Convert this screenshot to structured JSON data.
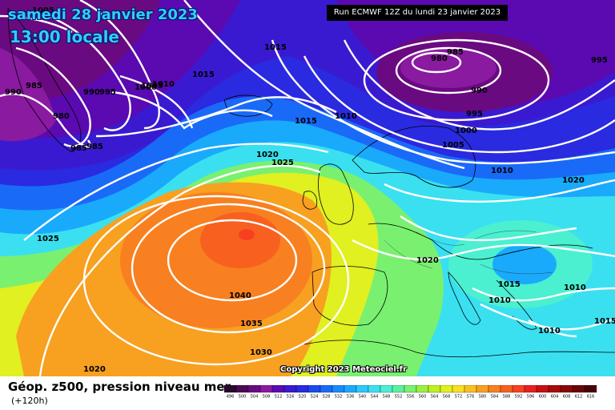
{
  "header": {
    "date_line": "samedi 28 janvier 2023",
    "time_line": "13:00 locale",
    "run_info": "Run ECMWF 12Z du lundi 23 janvier 2023"
  },
  "footer": {
    "title": "Géop. z500, pression niveau mer",
    "subtitle": "(+120h)",
    "copyright": "Copyright 2023 Meteociel.fr"
  },
  "legend": {
    "values": [
      "496",
      "500",
      "504",
      "508",
      "512",
      "516",
      "520",
      "524",
      "528",
      "532",
      "536",
      "540",
      "544",
      "548",
      "552",
      "556",
      "560",
      "564",
      "568",
      "572",
      "576",
      "580",
      "584",
      "588",
      "592",
      "596",
      "600",
      "604",
      "608",
      "612",
      "616"
    ],
    "colors": [
      "#2a0a2e",
      "#4a0a55",
      "#6a0a80",
      "#8a1aa0",
      "#5a0ab0",
      "#3a1ad0",
      "#2a2ae0",
      "#1a4af0",
      "#1a6af8",
      "#1a8afa",
      "#1aaafc",
      "#2acafc",
      "#3ae0f0",
      "#4af0d0",
      "#5af0a0",
      "#7af070",
      "#9af040",
      "#c0f020",
      "#e0f020",
      "#f8e020",
      "#f8c020",
      "#f8a020",
      "#f88020",
      "#f86020",
      "#f84020",
      "#e82020",
      "#c81010",
      "#a80a0a",
      "#880808",
      "#680606",
      "#480404"
    ]
  },
  "map_labels": [
    {
      "text": "1005"
    },
    {
      "text": "985"
    },
    {
      "text": "990"
    },
    {
      "text": "985"
    },
    {
      "text": "990"
    },
    {
      "text": "995"
    },
    {
      "text": "1000"
    },
    {
      "text": "1005"
    },
    {
      "text": "1010"
    },
    {
      "text": "1015"
    },
    {
      "text": "1015"
    },
    {
      "text": "980"
    },
    {
      "text": "985"
    },
    {
      "text": "1015"
    },
    {
      "text": "1010"
    },
    {
      "text": "985"
    },
    {
      "text": "980"
    },
    {
      "text": "990"
    },
    {
      "text": "995"
    },
    {
      "text": "1000"
    },
    {
      "text": "1005"
    },
    {
      "text": "995"
    },
    {
      "text": "1010"
    },
    {
      "text": "1020"
    },
    {
      "text": "1025"
    },
    {
      "text": "1020"
    },
    {
      "text": "1025"
    },
    {
      "text": "1020"
    },
    {
      "text": "1040"
    },
    {
      "text": "1035"
    },
    {
      "text": "1030"
    },
    {
      "text": "1020"
    },
    {
      "text": "1015"
    },
    {
      "text": "1010"
    },
    {
      "text": "1010"
    },
    {
      "text": "1010"
    },
    {
      "text": "1015"
    }
  ]
}
